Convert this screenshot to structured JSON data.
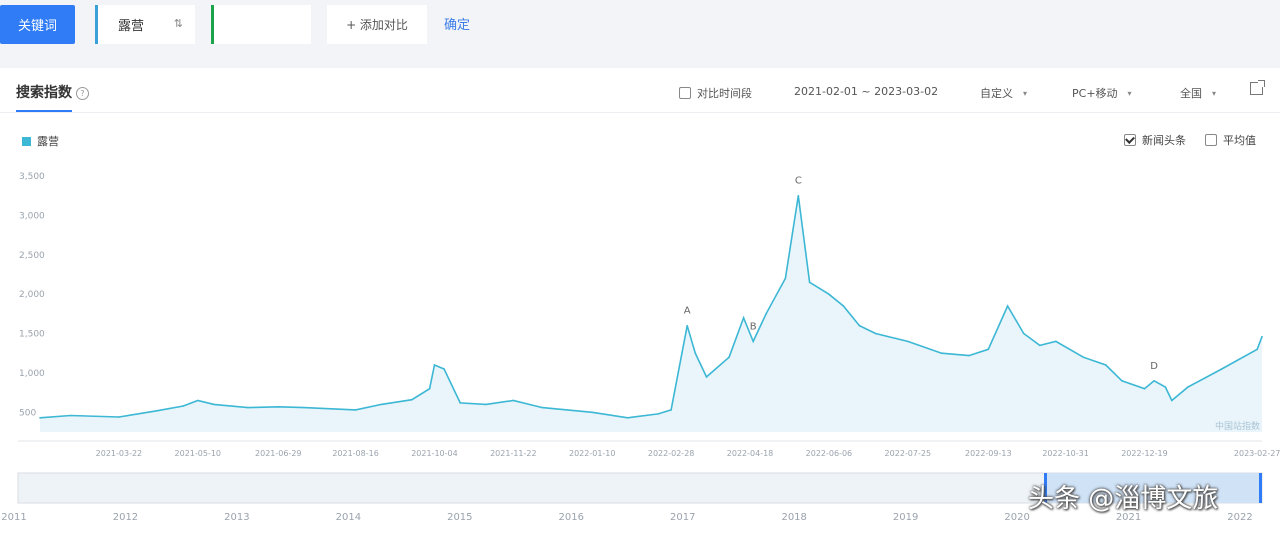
{
  "toolbar": {
    "keyword_button": "关键词",
    "keyword_1": "露营",
    "keyword_1_icon": "swap-icon",
    "keyword_2": "",
    "add_compare": "+ 添加对比",
    "confirm": "确定"
  },
  "panel": {
    "tab_title": "搜索指数",
    "compare_period_label": "对比时间段",
    "date_range": "2021-02-01 ~ 2023-03-02",
    "range_mode": "自定义",
    "device": "PC+移动",
    "region": "全国",
    "news_label": "新闻头条",
    "avg_label": "平均值",
    "legend_label": "露营"
  },
  "colors": {
    "accent": "#2f7cf6",
    "series": "#3cb7d4",
    "fill": "#e9f5fb"
  },
  "chart_data": {
    "type": "area",
    "series": [
      {
        "name": "露营",
        "x": [
          "2021-02-01",
          "2021-02-20",
          "2021-03-22",
          "2021-04-15",
          "2021-05-01",
          "2021-05-10",
          "2021-05-20",
          "2021-06-10",
          "2021-06-29",
          "2021-07-15",
          "2021-08-16",
          "2021-09-01",
          "2021-09-20",
          "2021-10-01",
          "2021-10-04",
          "2021-10-10",
          "2021-10-20",
          "2021-11-05",
          "2021-11-22",
          "2021-12-10",
          "2022-01-10",
          "2022-02-01",
          "2022-02-20",
          "2022-02-28",
          "2022-03-10",
          "2022-03-15",
          "2022-03-22",
          "2022-04-05",
          "2022-04-14",
          "2022-04-20",
          "2022-04-28",
          "2022-05-10",
          "2022-05-18",
          "2022-05-25",
          "2022-06-06",
          "2022-06-15",
          "2022-06-25",
          "2022-07-05",
          "2022-07-25",
          "2022-08-15",
          "2022-09-01",
          "2022-09-13",
          "2022-09-25",
          "2022-10-05",
          "2022-10-15",
          "2022-10-25",
          "2022-11-11",
          "2022-11-25",
          "2022-12-05",
          "2022-12-19",
          "2022-12-25",
          "2023-01-01",
          "2023-01-05",
          "2023-01-15",
          "2023-02-05",
          "2023-02-27",
          "2023-03-02"
        ],
        "values": [
          430,
          460,
          440,
          520,
          580,
          650,
          600,
          560,
          570,
          560,
          530,
          600,
          660,
          800,
          1100,
          1050,
          620,
          600,
          650,
          560,
          500,
          430,
          480,
          530,
          1600,
          1250,
          950,
          1200,
          1700,
          1400,
          1750,
          2200,
          3250,
          2150,
          2000,
          1850,
          1600,
          1500,
          1400,
          1250,
          1220,
          1300,
          1850,
          1500,
          1350,
          1400,
          1200,
          1100,
          900,
          800,
          900,
          820,
          650,
          820,
          1050,
          1300,
          1460
        ]
      }
    ],
    "annotations": [
      {
        "label": "A",
        "x": "2022-03-10"
      },
      {
        "label": "B",
        "x": "2022-04-20"
      },
      {
        "label": "C",
        "x": "2022-05-18"
      },
      {
        "label": "D",
        "x": "2022-12-25"
      }
    ],
    "xaxis_ticks": [
      "2021-03-22",
      "2021-05-10",
      "2021-06-29",
      "2021-08-16",
      "2021-10-04",
      "2021-11-22",
      "2022-01-10",
      "2022-02-28",
      "2022-04-18",
      "2022-06-06",
      "2022-07-25",
      "2022-09-13",
      "2022-10-31",
      "2022-12-19",
      "2023-02-27"
    ],
    "yaxis_ticks": [
      "500",
      "1,000",
      "1,500",
      "2,000",
      "2,500",
      "3,000",
      "3,500"
    ],
    "ylim": [
      250,
      3500
    ],
    "xlim": [
      "2021-02-01",
      "2023-03-02"
    ],
    "grid": false,
    "legend": "top-left",
    "corner_note": "中国站指数",
    "overview_ticks": [
      "2011",
      "2012",
      "2013",
      "2014",
      "2015",
      "2016",
      "2017",
      "2018",
      "2019",
      "2020",
      "2021",
      "2022"
    ]
  },
  "watermark": "头条 @淄博文旅"
}
